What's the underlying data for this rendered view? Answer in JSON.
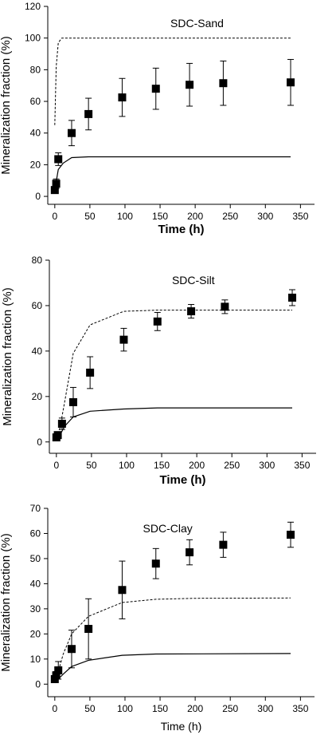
{
  "chart_data": [
    {
      "type": "scatter",
      "title": "SDC-Sand",
      "xlabel": "Time (h)",
      "ylabel": "Mineralization fraction (%)",
      "xlim": [
        -10,
        370
      ],
      "ylim": [
        -5,
        120
      ],
      "xticks": [
        0,
        50,
        100,
        150,
        200,
        250,
        300,
        350
      ],
      "yticks": [
        0,
        20,
        40,
        60,
        80,
        100,
        120
      ],
      "grid": false,
      "legend": "none",
      "series": [
        {
          "style": "square-markers-with-error-bars",
          "x": [
            0,
            2,
            5,
            24,
            48,
            96,
            144,
            192,
            240,
            336
          ],
          "y": [
            4,
            8,
            23.5,
            40,
            52,
            62.5,
            68,
            70.5,
            71.5,
            72
          ],
          "err": [
            1.5,
            3,
            4,
            8,
            10,
            12,
            13,
            13.5,
            14,
            14.5
          ]
        },
        {
          "style": "dashed-line",
          "x": [
            0,
            2,
            5,
            10,
            336
          ],
          "y": [
            45,
            82,
            97,
            100,
            100
          ]
        },
        {
          "style": "solid-line",
          "x": [
            0,
            5,
            12,
            24,
            48,
            336
          ],
          "y": [
            4,
            17,
            21,
            24.5,
            25,
            25
          ]
        }
      ]
    },
    {
      "type": "scatter",
      "title": "SDC-Silt",
      "xlabel": "Time (h)",
      "ylabel": "Mineralization fraction (%)",
      "xlim": [
        -10,
        370
      ],
      "ylim": [
        -5,
        80
      ],
      "xticks": [
        0,
        50,
        100,
        150,
        200,
        250,
        300,
        350
      ],
      "yticks": [
        0,
        20,
        40,
        60,
        80
      ],
      "grid": false,
      "legend": "none",
      "series": [
        {
          "style": "square-markers-with-error-bars",
          "x": [
            0,
            2,
            8,
            24,
            48,
            96,
            144,
            192,
            240,
            336
          ],
          "y": [
            2,
            3,
            8,
            17.5,
            30.5,
            45,
            53,
            57.5,
            59.5,
            63.5
          ],
          "err": [
            1,
            1.5,
            2.5,
            6.5,
            7,
            5,
            4,
            3,
            3,
            3.5
          ]
        },
        {
          "style": "dashed-line",
          "x": [
            0,
            5,
            12,
            24,
            48,
            96,
            144,
            336
          ],
          "y": [
            2,
            6,
            18,
            39,
            51.5,
            57.5,
            58,
            58
          ]
        },
        {
          "style": "solid-line",
          "x": [
            0,
            5,
            12,
            24,
            48,
            96,
            144,
            336
          ],
          "y": [
            1,
            3,
            7,
            11,
            13.5,
            14.5,
            15,
            15
          ]
        }
      ]
    },
    {
      "type": "scatter",
      "title": "SDC-Clay",
      "xlabel": "Time (h)",
      "ylabel": "Mineralization fraction (%)",
      "xlim": [
        -10,
        370
      ],
      "ylim": [
        -5,
        70
      ],
      "xticks": [
        0,
        50,
        100,
        150,
        200,
        250,
        300,
        350
      ],
      "yticks": [
        0,
        10,
        20,
        30,
        40,
        50,
        60,
        70
      ],
      "grid": false,
      "legend": "none",
      "series": [
        {
          "style": "square-markers-with-error-bars",
          "x": [
            0,
            2,
            5,
            24,
            48,
            96,
            144,
            192,
            240,
            336
          ],
          "y": [
            2,
            3.5,
            5.5,
            14,
            22,
            37.5,
            48,
            52.5,
            55.5,
            59.5
          ],
          "err": [
            1,
            1.5,
            3.5,
            7.5,
            12,
            11.5,
            6,
            5,
            5,
            5
          ]
        },
        {
          "style": "dashed-line",
          "x": [
            0,
            5,
            12,
            24,
            48,
            96,
            144,
            200,
            336
          ],
          "y": [
            1,
            5,
            12,
            20,
            27,
            32.5,
            33.8,
            34.2,
            34.3
          ]
        },
        {
          "style": "solid-line",
          "x": [
            0,
            5,
            12,
            24,
            48,
            96,
            144,
            336
          ],
          "y": [
            0.5,
            2,
            4,
            7,
            9.5,
            11.5,
            12,
            12.2
          ]
        }
      ]
    }
  ]
}
